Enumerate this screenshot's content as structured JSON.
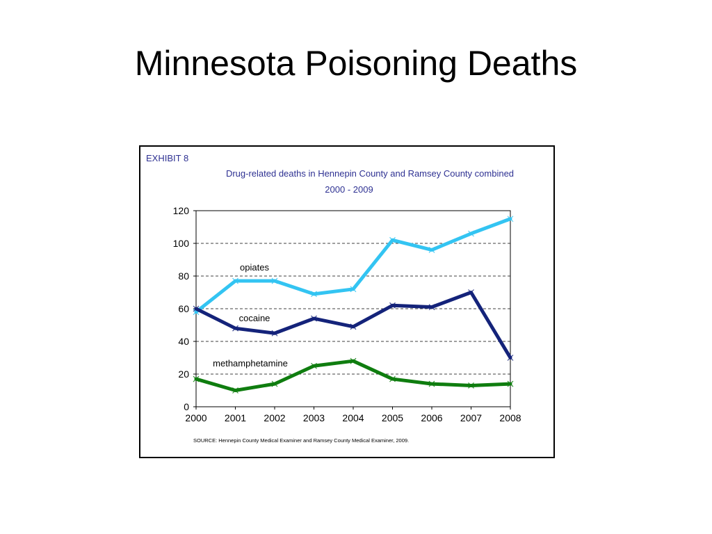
{
  "slide": {
    "title": "Minnesota Poisoning Deaths"
  },
  "exhibit": {
    "label": "EXHIBIT 8",
    "title_line1": "Drug-related deaths in Hennepin County and Ramsey County combined",
    "title_line2": "2000 - 2009",
    "source": "SOURCE: Hennepin County Medical Examiner and Ramsey County Medical Examiner, 2009."
  },
  "colors": {
    "title_text": "#2e3192",
    "opiates": "#33c4f2",
    "cocaine": "#14237a",
    "methamphetamine": "#0f7d0f",
    "grid": "#000000"
  },
  "chart_data": {
    "type": "line",
    "title": "Drug-related deaths in Hennepin County and Ramsey County combined",
    "subtitle": "2000 - 2009",
    "xlabel": "",
    "ylabel": "",
    "x": [
      "2000",
      "2001",
      "2002",
      "2003",
      "2004",
      "2005",
      "2006",
      "2007",
      "2008"
    ],
    "y_ticks": [
      0,
      20,
      40,
      60,
      80,
      100,
      120
    ],
    "ylim": [
      0,
      120
    ],
    "grid": "horizontal dashed",
    "legend": "inline labels",
    "series": [
      {
        "name": "opiates",
        "values": [
          58,
          77,
          77,
          69,
          72,
          102,
          96,
          106,
          115
        ]
      },
      {
        "name": "cocaine",
        "values": [
          60,
          48,
          45,
          54,
          49,
          62,
          61,
          70,
          30
        ]
      },
      {
        "name": "methamphetamine",
        "values": [
          17,
          10,
          14,
          25,
          28,
          17,
          14,
          13,
          14
        ]
      }
    ]
  }
}
